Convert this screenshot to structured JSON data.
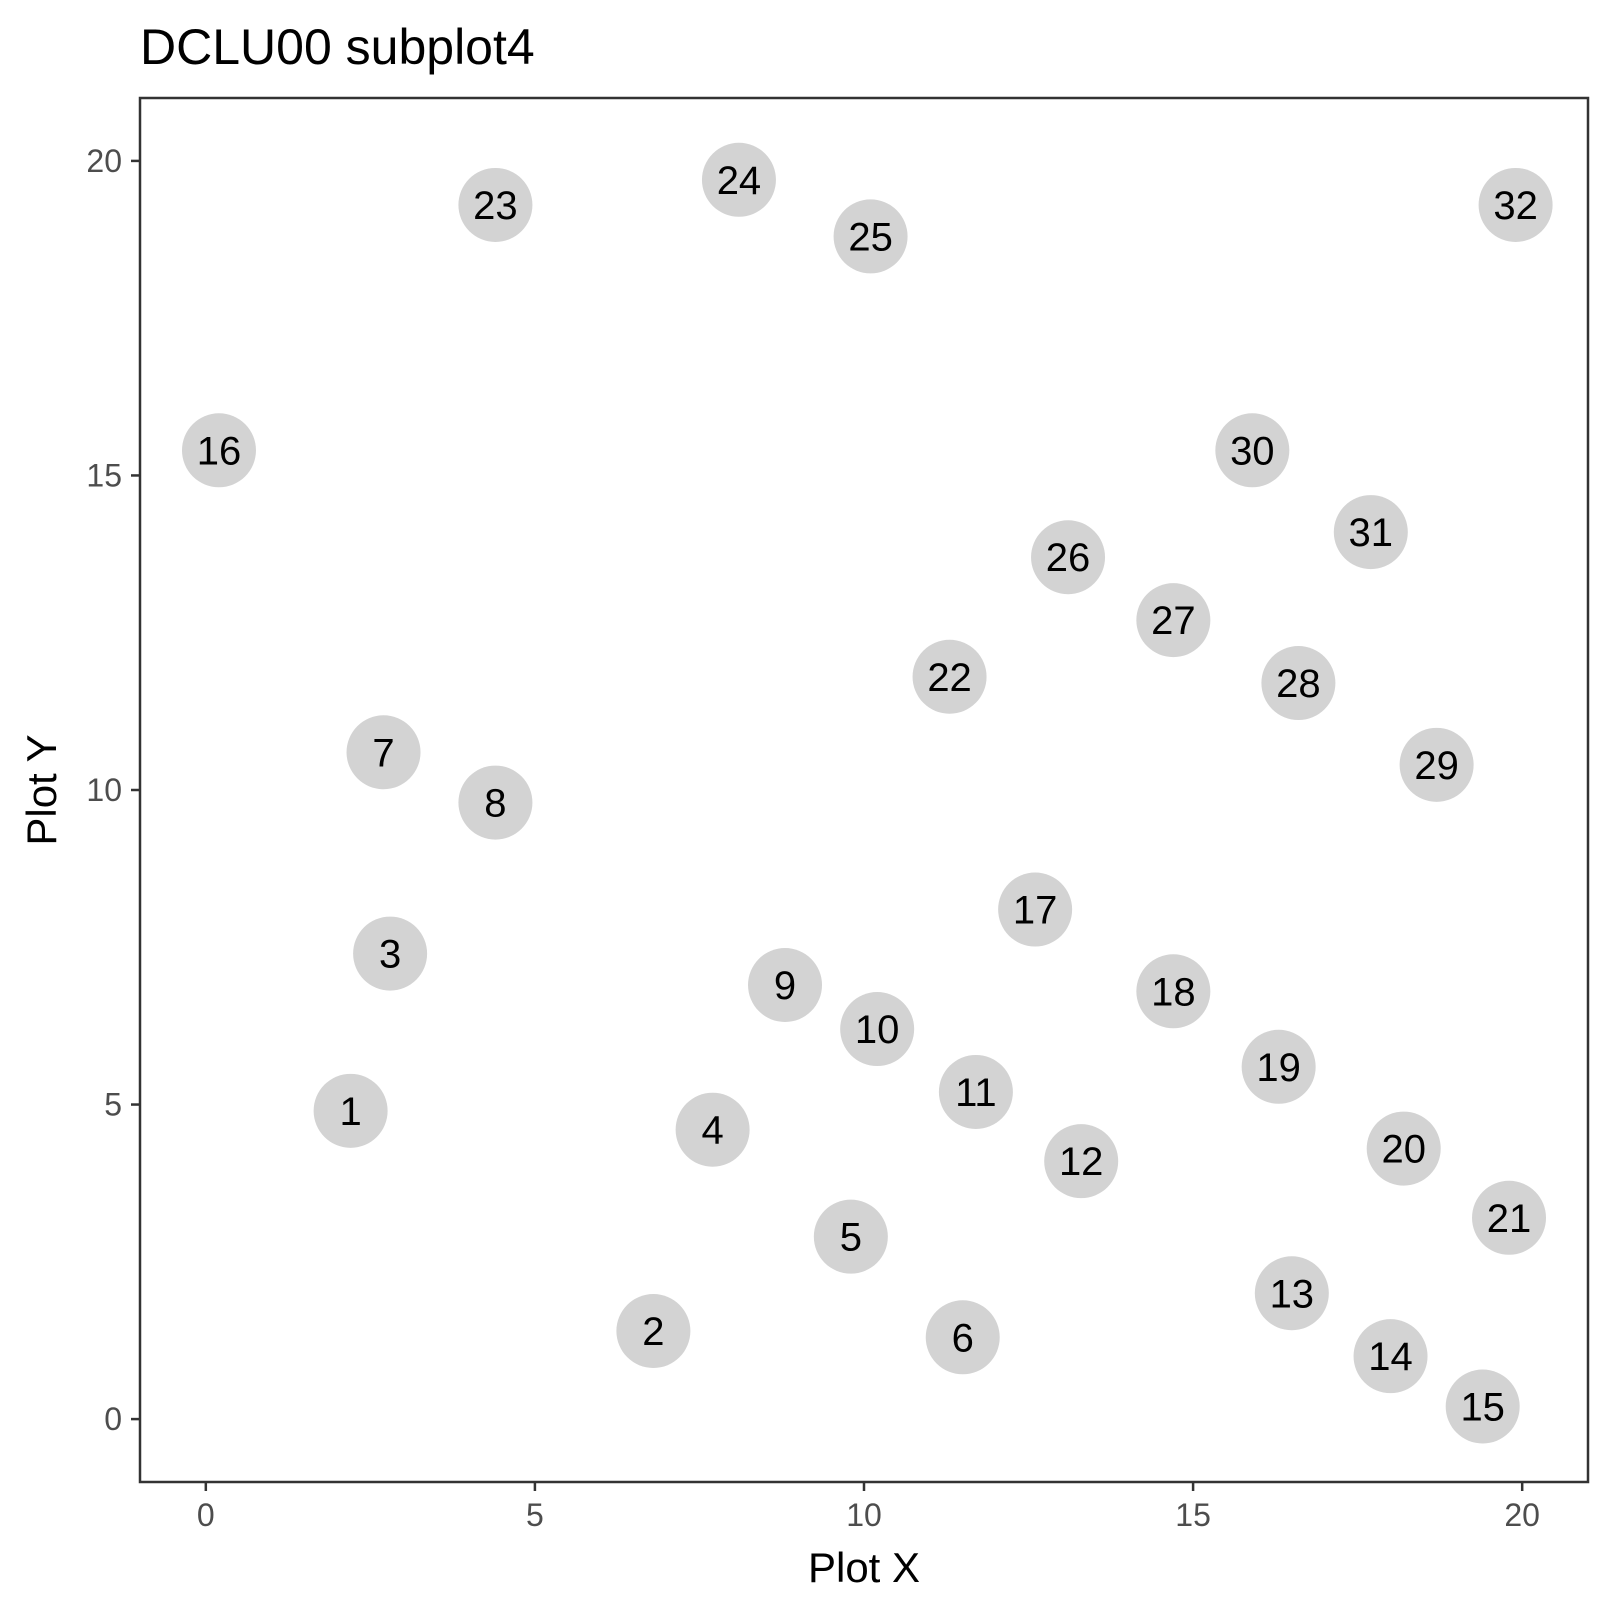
{
  "chart_data": {
    "type": "scatter",
    "title": "DCLU00 subplot4",
    "xlabel": "Plot X",
    "ylabel": "Plot Y",
    "xlim": [
      -1.0,
      21.0
    ],
    "ylim": [
      -1.0,
      21.0
    ],
    "xticks": [
      0,
      5,
      10,
      15,
      20
    ],
    "yticks": [
      0,
      5,
      10,
      15,
      20
    ],
    "grid": false,
    "marker_color": "#d3d3d3",
    "label_color": "#000000",
    "points": [
      {
        "label": "1",
        "x": 2.2,
        "y": 4.9
      },
      {
        "label": "2",
        "x": 6.8,
        "y": 1.4
      },
      {
        "label": "3",
        "x": 2.8,
        "y": 7.4
      },
      {
        "label": "4",
        "x": 7.7,
        "y": 4.6
      },
      {
        "label": "5",
        "x": 9.8,
        "y": 2.9
      },
      {
        "label": "6",
        "x": 11.5,
        "y": 1.3
      },
      {
        "label": "7",
        "x": 2.7,
        "y": 10.6
      },
      {
        "label": "8",
        "x": 4.4,
        "y": 9.8
      },
      {
        "label": "9",
        "x": 8.8,
        "y": 6.9
      },
      {
        "label": "10",
        "x": 10.2,
        "y": 6.2
      },
      {
        "label": "11",
        "x": 11.7,
        "y": 5.2
      },
      {
        "label": "12",
        "x": 13.3,
        "y": 4.1
      },
      {
        "label": "13",
        "x": 16.5,
        "y": 2.0
      },
      {
        "label": "14",
        "x": 18.0,
        "y": 1.0
      },
      {
        "label": "15",
        "x": 19.4,
        "y": 0.2
      },
      {
        "label": "16",
        "x": 0.2,
        "y": 15.4
      },
      {
        "label": "17",
        "x": 12.6,
        "y": 8.1
      },
      {
        "label": "18",
        "x": 14.7,
        "y": 6.8
      },
      {
        "label": "19",
        "x": 16.3,
        "y": 5.6
      },
      {
        "label": "20",
        "x": 18.2,
        "y": 4.3
      },
      {
        "label": "21",
        "x": 19.8,
        "y": 3.2
      },
      {
        "label": "22",
        "x": 11.3,
        "y": 11.8
      },
      {
        "label": "23",
        "x": 4.4,
        "y": 19.3
      },
      {
        "label": "24",
        "x": 8.1,
        "y": 19.7
      },
      {
        "label": "25",
        "x": 10.1,
        "y": 18.8
      },
      {
        "label": "26",
        "x": 13.1,
        "y": 13.7
      },
      {
        "label": "27",
        "x": 14.7,
        "y": 12.7
      },
      {
        "label": "28",
        "x": 16.6,
        "y": 11.7
      },
      {
        "label": "29",
        "x": 18.7,
        "y": 10.4
      },
      {
        "label": "30",
        "x": 15.9,
        "y": 15.4
      },
      {
        "label": "31",
        "x": 17.7,
        "y": 14.1
      },
      {
        "label": "32",
        "x": 19.9,
        "y": 19.3
      }
    ]
  }
}
